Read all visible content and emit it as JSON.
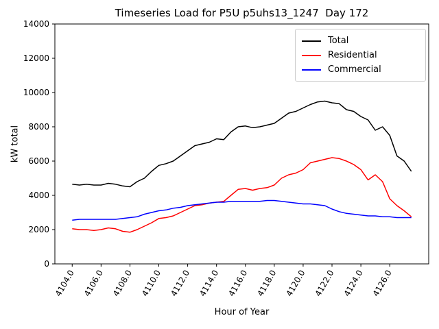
{
  "chart_data": {
    "type": "line",
    "title": "Timeseries Load for P5U p5uhs13_1247  Day 172",
    "xlabel": "Hour of Year",
    "ylabel": "kW total",
    "xlim": [
      4102.8,
      4128.7
    ],
    "ylim": [
      0,
      14000
    ],
    "grid": false,
    "legend_position": "upper right",
    "xticks": [
      4104,
      4106,
      4108,
      4110,
      4112,
      4114,
      4116,
      4118,
      4120,
      4122,
      4124,
      4126
    ],
    "xtick_labels": [
      "4104.0",
      "4106.0",
      "4108.0",
      "4110.0",
      "4112.0",
      "4114.0",
      "4116.0",
      "4118.0",
      "4120.0",
      "4122.0",
      "4124.0",
      "4126.0"
    ],
    "yticks": [
      0,
      2000,
      4000,
      6000,
      8000,
      10000,
      12000,
      14000
    ],
    "ytick_labels": [
      "0",
      "2000",
      "4000",
      "6000",
      "8000",
      "10000",
      "12000",
      "14000"
    ],
    "x": [
      4104,
      4104.5,
      4105,
      4105.5,
      4106,
      4106.5,
      4107,
      4107.5,
      4108,
      4108.5,
      4109,
      4109.5,
      4110,
      4110.5,
      4111,
      4111.5,
      4112,
      4112.5,
      4113,
      4113.5,
      4114,
      4114.5,
      4115,
      4115.5,
      4116,
      4116.5,
      4117,
      4117.5,
      4118,
      4118.5,
      4119,
      4119.5,
      4120,
      4120.5,
      4121,
      4121.5,
      4122,
      4122.5,
      4123,
      4123.5,
      4124,
      4124.5,
      4125,
      4125.5,
      4126,
      4126.5,
      4127,
      4127.5
    ],
    "series": [
      {
        "name": "Total",
        "color": "#000000",
        "values": [
          4650,
          4600,
          4650,
          4600,
          4600,
          4700,
          4650,
          4550,
          4500,
          4800,
          5000,
          5400,
          5750,
          5850,
          6000,
          6300,
          6600,
          6900,
          7000,
          7100,
          7300,
          7250,
          7700,
          8000,
          8050,
          7950,
          8000,
          8100,
          8200,
          8500,
          8800,
          8900,
          9100,
          9300,
          9450,
          9500,
          9400,
          9350,
          9000,
          8900,
          8600,
          8400,
          7800,
          8000,
          7500,
          6300,
          6000,
          5400
        ]
      },
      {
        "name": "Residential",
        "color": "#ff0000",
        "values": [
          2050,
          2000,
          2000,
          1950,
          2000,
          2100,
          2050,
          1900,
          1850,
          2000,
          2200,
          2400,
          2650,
          2700,
          2800,
          3000,
          3200,
          3400,
          3450,
          3550,
          3600,
          3650,
          4000,
          4350,
          4400,
          4300,
          4400,
          4450,
          4600,
          5000,
          5200,
          5300,
          5500,
          5900,
          6000,
          6100,
          6200,
          6150,
          6000,
          5800,
          5500,
          4900,
          5200,
          4800,
          3800,
          3400,
          3100,
          2750
        ]
      },
      {
        "name": "Commercial",
        "color": "#0000ff",
        "values": [
          2550,
          2600,
          2600,
          2600,
          2600,
          2600,
          2600,
          2650,
          2700,
          2750,
          2900,
          3000,
          3100,
          3150,
          3250,
          3300,
          3400,
          3450,
          3500,
          3550,
          3600,
          3600,
          3650,
          3650,
          3650,
          3650,
          3650,
          3700,
          3700,
          3650,
          3600,
          3550,
          3500,
          3500,
          3450,
          3400,
          3200,
          3050,
          2950,
          2900,
          2850,
          2800,
          2800,
          2750,
          2750,
          2700,
          2700,
          2700
        ]
      }
    ]
  }
}
